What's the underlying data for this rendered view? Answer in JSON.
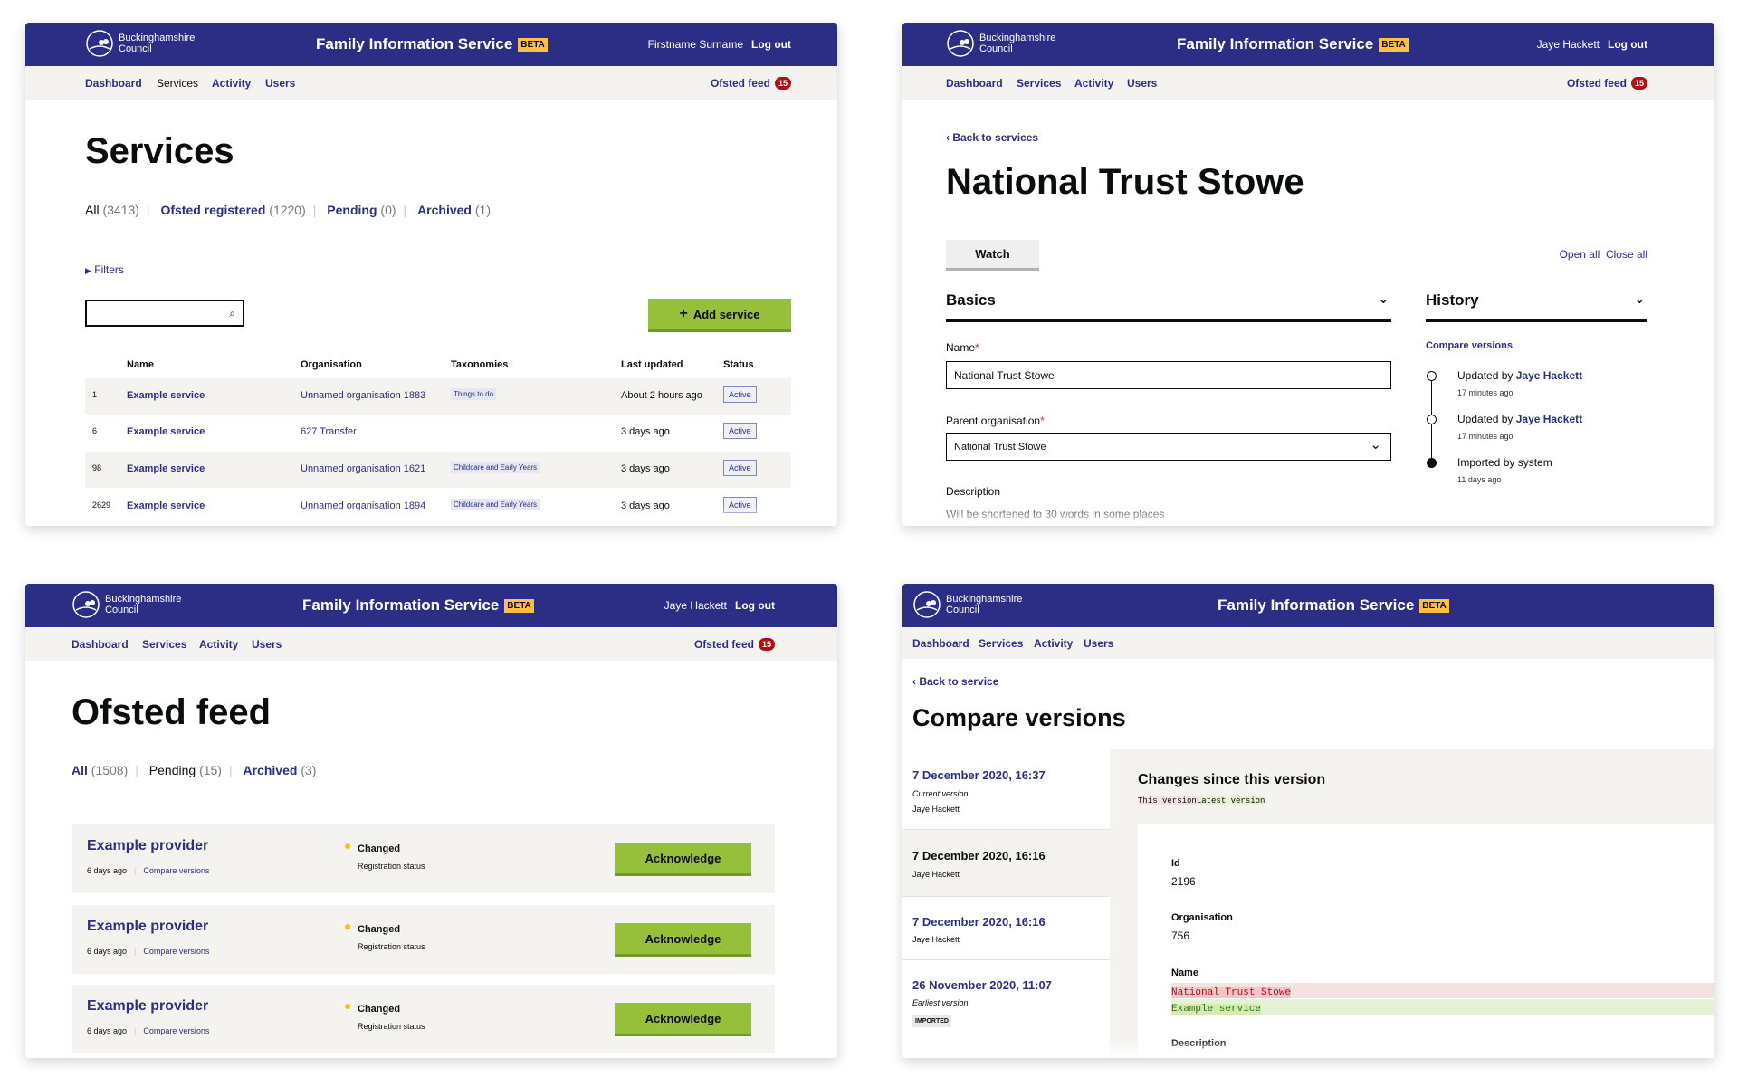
{
  "brand": {
    "council_line1": "Buckinghamshire",
    "council_line2": "Council",
    "service_name": "Family Information Service",
    "phase": "BETA",
    "logout": "Log out",
    "ofsted_feed": "Ofsted feed",
    "ofsted_count": "15",
    "nav": [
      "Dashboard",
      "Services",
      "Activity",
      "Users"
    ],
    "colors": {
      "header": "#2b2e84",
      "accent_green": "#97c03a",
      "badge_red": "#b30d18",
      "phase_yellow": "#ffbf47"
    }
  },
  "services_page": {
    "user": "Firstname Surname",
    "title": "Services",
    "tabs": [
      {
        "label": "All",
        "count": "(3413)"
      },
      {
        "label": "Ofsted registered",
        "count": "(1220)"
      },
      {
        "label": "Pending",
        "count": "(0)"
      },
      {
        "label": "Archived",
        "count": "(1)"
      }
    ],
    "filters": "Filters",
    "search_value": "",
    "add_button": "Add service",
    "columns": [
      "Name",
      "Organisation",
      "Taxonomies",
      "Last updated",
      "Status"
    ],
    "rows": [
      {
        "id": "1",
        "name": "Example service",
        "org": "Unnamed organisation 1883",
        "taxonomy": "Things to do",
        "updated": "About 2 hours ago",
        "status": "Active"
      },
      {
        "id": "6",
        "name": "Example service",
        "org": "627 Transfer",
        "taxonomy": "",
        "updated": "3 days ago",
        "status": "Active"
      },
      {
        "id": "98",
        "name": "Example service",
        "org": "Unnamed organisation 1621",
        "taxonomy": "Childcare and Early Years",
        "updated": "3 days ago",
        "status": "Active"
      },
      {
        "id": "2629",
        "name": "Example service",
        "org": "Unnamed organisation 1894",
        "taxonomy": "Childcare and Early Years",
        "updated": "3 days ago",
        "status": "Active"
      }
    ]
  },
  "service_detail": {
    "user": "Jaye Hackett",
    "back": "Back to services",
    "title": "National Trust Stowe",
    "watch": "Watch",
    "open_all": "Open all",
    "close_all": "Close all",
    "basics": "Basics",
    "name_label": "Name",
    "name_value": "National Trust Stowe",
    "parent_label": "Parent organisation",
    "parent_value": "National Trust Stowe",
    "required": "*",
    "description_label": "Description",
    "description_hint": "Will be shortened to 30 words in some places",
    "history": "History",
    "compare_versions": "Compare versions",
    "timeline": [
      {
        "text": "Updated by",
        "who": "Jaye Hackett",
        "when": "17 minutes ago"
      },
      {
        "text": "Updated by",
        "who": "Jaye Hackett",
        "when": "17 minutes ago"
      },
      {
        "text": "Imported by system",
        "who": "",
        "when": "11 days ago"
      }
    ]
  },
  "ofsted_page": {
    "user": "Jaye Hackett",
    "title": "Ofsted feed",
    "tabs": [
      {
        "label": "All",
        "count": "(1508)"
      },
      {
        "label": "Pending",
        "count": "(15)"
      },
      {
        "label": "Archived",
        "count": "(3)"
      }
    ],
    "items": [
      {
        "name": "Example provider",
        "age": "6 days ago",
        "compare": "Compare versions",
        "change": "Changed",
        "field": "Registration status",
        "action": "Acknowledge"
      },
      {
        "name": "Example provider",
        "age": "6 days ago",
        "compare": "Compare versions",
        "change": "Changed",
        "field": "Registration status",
        "action": "Acknowledge"
      },
      {
        "name": "Example provider",
        "age": "6 days ago",
        "compare": "Compare versions",
        "change": "Changed",
        "field": "Registration status",
        "action": "Acknowledge"
      }
    ]
  },
  "compare_page": {
    "back": "Back to service",
    "title": "Compare versions",
    "versions": [
      {
        "date": "7 December 2020, 16:37",
        "note": "Current version",
        "author": "Jaye Hackett"
      },
      {
        "date": "7 December 2020, 16:16",
        "author": "Jaye Hackett"
      },
      {
        "date": "7 December 2020, 16:16",
        "author": "Jaye Hackett"
      },
      {
        "date": "26 November 2020, 11:07",
        "note": "Earliest version",
        "tag": "IMPORTED"
      }
    ],
    "changes_title": "Changes since this version",
    "legend_old": "This version",
    "legend_new": "Latest version",
    "fields": [
      {
        "label": "Id",
        "value": "2196"
      },
      {
        "label": "Organisation",
        "value": "756"
      },
      {
        "label": "Name",
        "removed": "National Trust Stowe",
        "added": "Example service"
      },
      {
        "label": "Description"
      }
    ]
  }
}
